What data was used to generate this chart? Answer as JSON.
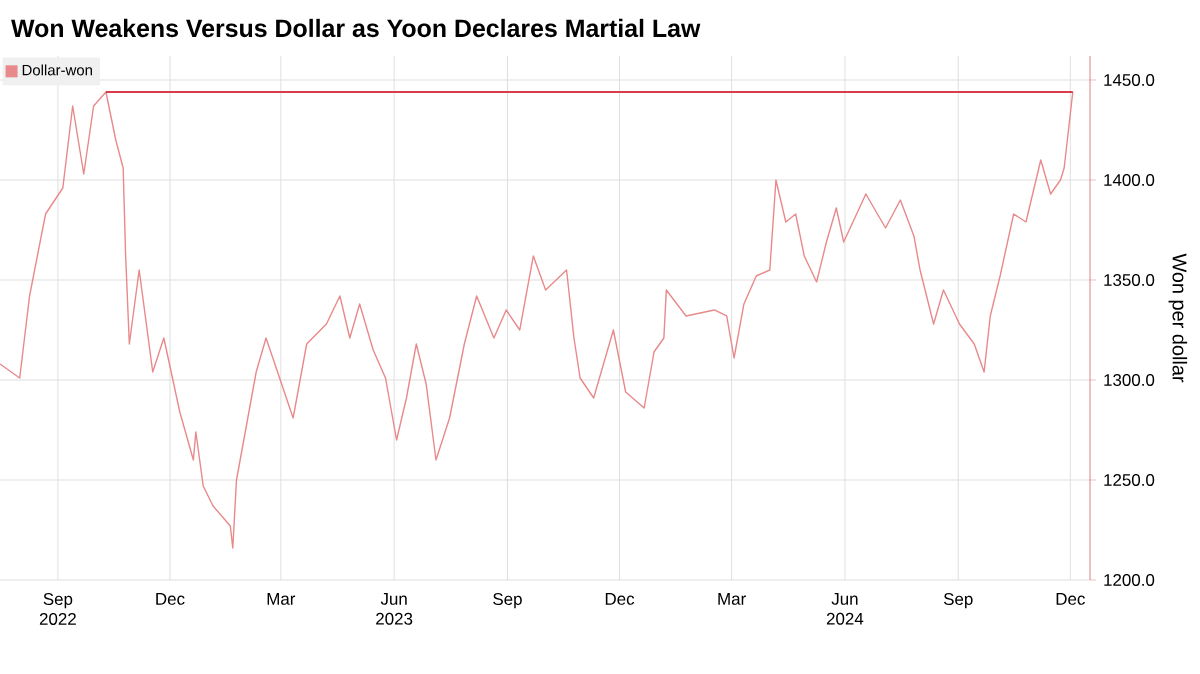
{
  "chart_data": {
    "type": "line",
    "title": "Won Weakens Versus Dollar as Yoon Declares Martial Law",
    "ylabel": "Won per dollar",
    "series": [
      {
        "name": "Dollar-won",
        "color": "#e8898b",
        "x": [
          "2022-07-16",
          "2022-08-01",
          "2022-08-09",
          "2022-08-22",
          "2022-09-05",
          "2022-09-13",
          "2022-09-22",
          "2022-09-30",
          "2022-10-10",
          "2022-10-18",
          "2022-10-24",
          "2022-10-26",
          "2022-10-29",
          "2022-11-06",
          "2022-11-17",
          "2022-11-26",
          "2022-12-09",
          "2022-12-20",
          "2022-12-22",
          "2022-12-28",
          "2023-01-05",
          "2023-01-19",
          "2023-01-21",
          "2023-01-24",
          "2023-02-01",
          "2023-02-09",
          "2023-02-17",
          "2023-02-28",
          "2023-03-11",
          "2023-03-22",
          "2023-04-07",
          "2023-04-18",
          "2023-04-26",
          "2023-05-04",
          "2023-05-15",
          "2023-05-25",
          "2023-06-03",
          "2023-06-11",
          "2023-06-19",
          "2023-06-27",
          "2023-07-05",
          "2023-07-16",
          "2023-07-28",
          "2023-08-07",
          "2023-08-21",
          "2023-08-31",
          "2023-09-11",
          "2023-09-22",
          "2023-10-02",
          "2023-10-19",
          "2023-10-25",
          "2023-10-30",
          "2023-11-10",
          "2023-11-26",
          "2023-12-06",
          "2023-12-21",
          "2023-12-29",
          "2024-01-06",
          "2024-01-08",
          "2024-01-24",
          "2024-02-16",
          "2024-02-26",
          "2024-03-03",
          "2024-03-11",
          "2024-03-21",
          "2024-04-01",
          "2024-04-06",
          "2024-04-14",
          "2024-04-22",
          "2024-04-29",
          "2024-05-09",
          "2024-05-17",
          "2024-05-25",
          "2024-05-31",
          "2024-06-18",
          "2024-07-04",
          "2024-07-16",
          "2024-07-27",
          "2024-08-01",
          "2024-08-12",
          "2024-08-20",
          "2024-09-02",
          "2024-09-14",
          "2024-09-22",
          "2024-09-27",
          "2024-10-05",
          "2024-10-16",
          "2024-10-26",
          "2024-11-07",
          "2024-11-15",
          "2024-11-23",
          "2024-11-26",
          "2024-12-03"
        ],
        "values": [
          1308,
          1301,
          1342,
          1383,
          1396,
          1437,
          1403,
          1437,
          1444,
          1420,
          1406,
          1362,
          1318,
          1355,
          1304,
          1321,
          1284,
          1260,
          1274,
          1247,
          1237,
          1227,
          1216,
          1250,
          1277,
          1304,
          1321,
          1301,
          1281,
          1318,
          1328,
          1342,
          1321,
          1338,
          1315,
          1301,
          1270,
          1291,
          1318,
          1298,
          1260,
          1281,
          1318,
          1342,
          1321,
          1335,
          1325,
          1362,
          1345,
          1355,
          1321,
          1301,
          1291,
          1325,
          1294,
          1286,
          1314,
          1321,
          1345,
          1332,
          1335,
          1332,
          1311,
          1338,
          1352,
          1355,
          1400,
          1379,
          1383,
          1362,
          1349,
          1369,
          1386,
          1369,
          1393,
          1376,
          1390,
          1372,
          1355,
          1328,
          1345,
          1328,
          1318,
          1304,
          1332,
          1352,
          1383,
          1379,
          1410,
          1393,
          1400,
          1406,
          1444
        ]
      }
    ],
    "xlim": [
      "2022-07-16",
      "2024-12-17"
    ],
    "xticks": [
      {
        "value": "2022-09-01",
        "label": "Sep 2022"
      },
      {
        "value": "2022-12-01",
        "label": "Dec"
      },
      {
        "value": "2023-03-01",
        "label": "Mar"
      },
      {
        "value": "2023-06-01",
        "label": "Jun 2023"
      },
      {
        "value": "2023-09-01",
        "label": "Sep"
      },
      {
        "value": "2023-12-01",
        "label": "Dec"
      },
      {
        "value": "2024-03-01",
        "label": "Mar"
      },
      {
        "value": "2024-06-01",
        "label": "Jun 2024"
      },
      {
        "value": "2024-09-01",
        "label": "Sep"
      },
      {
        "value": "2024-12-01",
        "label": "Dec"
      }
    ],
    "ylim": [
      1200,
      1462
    ],
    "yticks": [
      {
        "value": 1200,
        "label": "1200.0"
      },
      {
        "value": 1250,
        "label": "1250.0"
      },
      {
        "value": 1300,
        "label": "1300.0"
      },
      {
        "value": 1350,
        "label": "1350.0"
      },
      {
        "value": 1400,
        "label": "1400.0"
      },
      {
        "value": 1450,
        "label": "1450.0"
      }
    ],
    "ref_lines": [
      {
        "axis": "y",
        "value": 1444,
        "color": "#d93a4c"
      }
    ],
    "grid": true,
    "legend": "top left",
    "marker": "none",
    "line_style": "solid"
  }
}
